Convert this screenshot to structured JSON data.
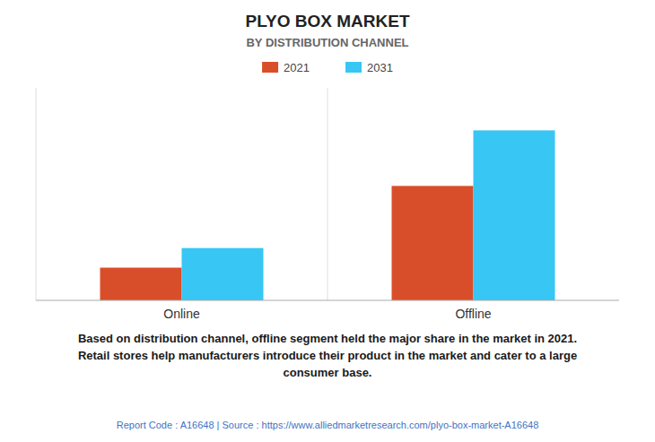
{
  "chart_data": {
    "type": "bar",
    "title": "PLYO BOX MARKET",
    "subtitle": "BY DISTRIBUTION CHANNEL",
    "categories": [
      "Online",
      "Offline"
    ],
    "series": [
      {
        "name": "2021",
        "color": "#D94E2A",
        "values": [
          1.0,
          3.5
        ]
      },
      {
        "name": "2031",
        "color": "#38C6F4",
        "values": [
          1.6,
          5.2
        ]
      }
    ],
    "ylim": [
      0,
      6.5
    ],
    "tick_labels": "x",
    "grid": false,
    "legend": "top",
    "annotations": [
      "Based on distribution channel, offline segment held the major share in the market in 2021.\nRetail stores help manufacturers introduce their product in the market and cater to a large\nconsumer base.",
      "Report Code : A16648  |  Source : https://www.alliedmarketresearch.com/plyo-box-market-A16648"
    ]
  }
}
